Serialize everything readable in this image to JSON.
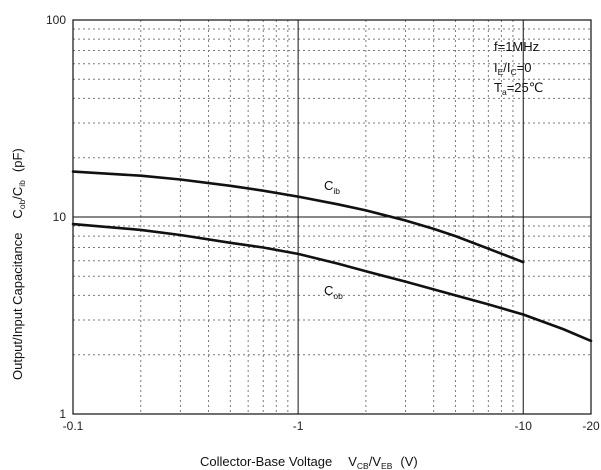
{
  "chart_data": {
    "type": "line",
    "xlabel": {
      "main": "Collector-Base Voltage",
      "v1": "V",
      "s1": "CB",
      "mid": "/V",
      "s2": "EB",
      "unit": "(V)"
    },
    "ylabel": {
      "p1": "Output/Input Capacitance",
      "c1": "C",
      "s1": "ob",
      "mid": "/C",
      "s2": "ib",
      "unit": "(pF)"
    },
    "x_scale": "log",
    "y_scale": "log",
    "xlim": [
      -0.1,
      -20
    ],
    "ylim": [
      1,
      100
    ],
    "grid": true,
    "x_ticks": [
      {
        "value": 0.1,
        "label": "-0.1"
      },
      {
        "value": 1,
        "label": "-1"
      },
      {
        "value": 10,
        "label": "-10"
      },
      {
        "value": 20,
        "label": "-20"
      }
    ],
    "y_ticks": [
      {
        "value": 1,
        "label": "1"
      },
      {
        "value": 10,
        "label": "10"
      },
      {
        "value": 100,
        "label": "100"
      }
    ],
    "conditions": [
      {
        "main": "f=1MHz"
      },
      {
        "p1": "I",
        "s1": "E",
        "p2": "/I",
        "s2": "C",
        "p3": "=0"
      },
      {
        "p1": "T",
        "s1": "a",
        "p2": "=25℃"
      }
    ],
    "series": [
      {
        "name": "Cib",
        "label_main": "C",
        "label_sub": "ib",
        "x": [
          -0.1,
          -0.2,
          -0.3,
          -0.5,
          -0.7,
          -1,
          -1.5,
          -2,
          -3,
          -4,
          -5,
          -7,
          -10
        ],
        "y": [
          17,
          16.2,
          15.5,
          14.4,
          13.6,
          12.7,
          11.6,
          10.8,
          9.6,
          8.7,
          8.0,
          6.9,
          5.9
        ]
      },
      {
        "name": "Cob",
        "label_main": "C",
        "label_sub": "ob",
        "x": [
          -0.1,
          -0.2,
          -0.3,
          -0.5,
          -0.7,
          -1,
          -1.5,
          -2,
          -3,
          -5,
          -7,
          -10,
          -15,
          -20
        ],
        "y": [
          9.2,
          8.6,
          8.1,
          7.4,
          7.0,
          6.5,
          5.8,
          5.3,
          4.7,
          4.0,
          3.6,
          3.2,
          2.7,
          2.35
        ]
      }
    ]
  }
}
